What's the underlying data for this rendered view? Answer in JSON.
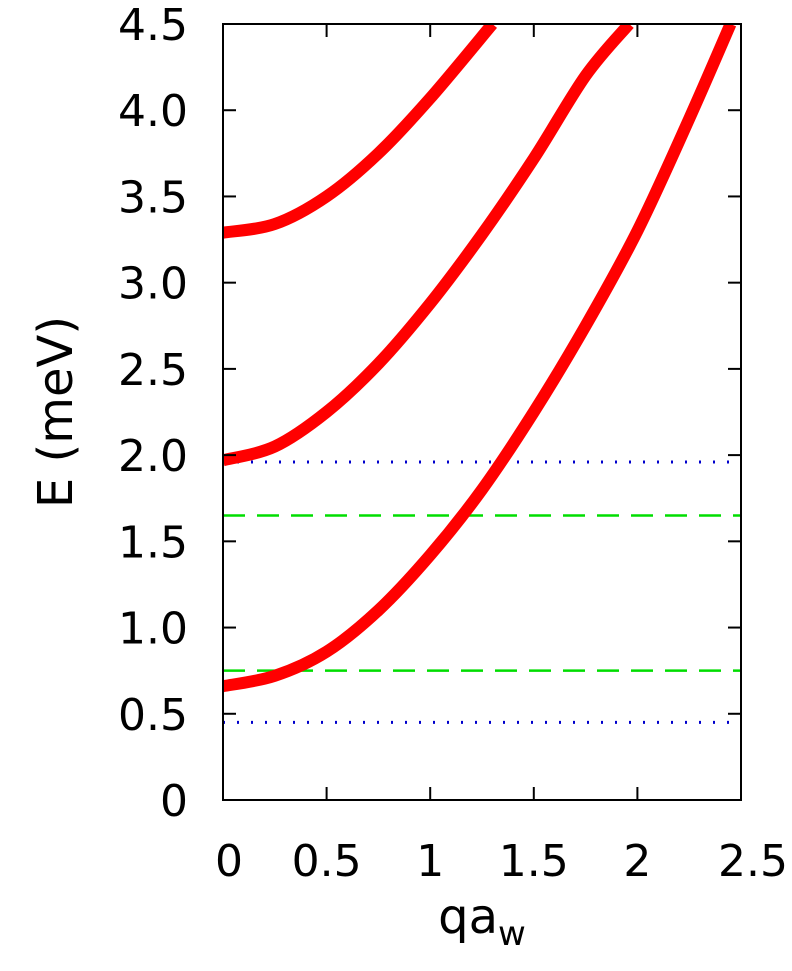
{
  "chart_data": {
    "type": "line",
    "title": "",
    "xlabel": "qa",
    "xlabel_subscript": "w",
    "ylabel": "E (meV)",
    "xlim": [
      0,
      2.5
    ],
    "ylim": [
      0,
      4.5
    ],
    "x_ticks": [
      0,
      0.5,
      1,
      1.5,
      2,
      2.5
    ],
    "x_tick_labels": [
      "0",
      "0.5",
      "1",
      "1.5",
      "2",
      "2.5"
    ],
    "y_ticks": [
      0,
      0.5,
      1.0,
      1.5,
      2.0,
      2.5,
      3.0,
      3.5,
      4.0,
      4.5
    ],
    "y_tick_labels": [
      "0",
      "0.5",
      "1.0",
      "1.5",
      "2.0",
      "2.5",
      "3.0",
      "3.5",
      "4.0",
      "4.5"
    ],
    "grid": false,
    "legend": "none",
    "series": [
      {
        "color": "#ff0000",
        "style": "solid-thick",
        "x": [
          0,
          0.25,
          0.5,
          0.75,
          1.0,
          1.25,
          1.5,
          1.75,
          2.0,
          2.25,
          2.45
        ],
        "y": [
          0.66,
          0.72,
          0.86,
          1.1,
          1.42,
          1.8,
          2.25,
          2.75,
          3.3,
          3.95,
          4.5
        ]
      },
      {
        "color": "#ff0000",
        "style": "solid-thick",
        "x": [
          0,
          0.25,
          0.5,
          0.75,
          1.0,
          1.25,
          1.5,
          1.75,
          1.96
        ],
        "y": [
          1.97,
          2.05,
          2.25,
          2.53,
          2.88,
          3.28,
          3.72,
          4.2,
          4.5
        ]
      },
      {
        "color": "#ff0000",
        "style": "solid-thick",
        "x": [
          0,
          0.25,
          0.5,
          0.75,
          1.0,
          1.3
        ],
        "y": [
          3.29,
          3.34,
          3.5,
          3.75,
          4.07,
          4.5
        ]
      }
    ],
    "hlines": [
      {
        "y": 1.96,
        "color": "#0000cc",
        "style": "dotted"
      },
      {
        "y": 1.65,
        "color": "#00dd00",
        "style": "dashed"
      },
      {
        "y": 0.75,
        "color": "#00dd00",
        "style": "dashed"
      },
      {
        "y": 0.45,
        "color": "#0000cc",
        "style": "dotted"
      }
    ]
  }
}
